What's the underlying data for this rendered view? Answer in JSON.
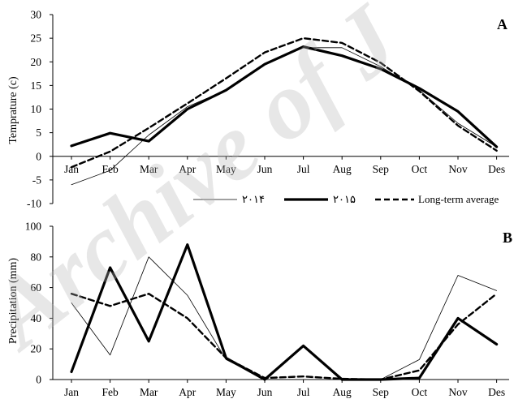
{
  "watermark": "Archive of J",
  "months": [
    "Jan",
    "Feb",
    "Mar",
    "Apr",
    "May",
    "Jun",
    "Jul",
    "Aug",
    "Sep",
    "Oct",
    "Nov",
    "Des"
  ],
  "chart_data": [
    {
      "type": "line",
      "panel_label": "A",
      "ylabel": "Temprature (c)",
      "categories": [
        "Jan",
        "Feb",
        "Mar",
        "Apr",
        "May",
        "Jun",
        "Jul",
        "Aug",
        "Sep",
        "Oct",
        "Nov",
        "Des"
      ],
      "ylim": [
        -10,
        30
      ],
      "yticks": [
        -10,
        -5,
        0,
        5,
        10,
        15,
        20,
        25,
        30
      ],
      "series": [
        {
          "name": "۲۰۱۴",
          "style": "thin",
          "color": "#000000",
          "values": [
            -6.0,
            -3.0,
            4.5,
            10.5,
            14.0,
            19.5,
            23.0,
            23.0,
            19.0,
            14.0,
            7.0,
            2.0
          ]
        },
        {
          "name": "۲۰۱۵",
          "style": "thick",
          "color": "#000000",
          "values": [
            2.2,
            4.9,
            3.2,
            10.0,
            14.0,
            19.5,
            23.2,
            21.3,
            18.5,
            14.4,
            9.5,
            2.0
          ]
        },
        {
          "name": "Long-term average",
          "style": "dashed",
          "color": "#000000",
          "values": [
            -2.3,
            1.0,
            6.0,
            11.2,
            16.5,
            22.0,
            25.0,
            24.0,
            19.8,
            13.8,
            6.5,
            1.2
          ]
        }
      ]
    },
    {
      "type": "line",
      "panel_label": "B",
      "ylabel": "Precipitation (mm)",
      "categories": [
        "Jan",
        "Feb",
        "Mar",
        "Apr",
        "May",
        "Jun",
        "Jul",
        "Aug",
        "Sep",
        "Oct",
        "Nov",
        "Des"
      ],
      "ylim": [
        0,
        100
      ],
      "yticks": [
        0,
        20,
        40,
        60,
        80,
        100
      ],
      "series": [
        {
          "name": "۲۰۱۴",
          "style": "thin",
          "color": "#000000",
          "values": [
            50,
            16,
            80,
            55,
            13,
            0,
            0,
            0,
            0,
            13,
            68,
            58
          ]
        },
        {
          "name": "۲۰۱۵",
          "style": "thick",
          "color": "#000000",
          "values": [
            5,
            73,
            25,
            88,
            14,
            0,
            22,
            0,
            0,
            1,
            40,
            23
          ]
        },
        {
          "name": "Long-term average",
          "style": "dashed",
          "color": "#000000",
          "values": [
            56,
            48,
            56,
            40,
            14,
            1,
            2,
            0.5,
            0,
            6,
            36,
            56
          ]
        }
      ]
    }
  ],
  "legend": [
    {
      "label": "۲۰۱۴",
      "style": "thin"
    },
    {
      "label": "۲۰۱۵",
      "style": "thick"
    },
    {
      "label": "Long-term average",
      "style": "dashed"
    }
  ]
}
